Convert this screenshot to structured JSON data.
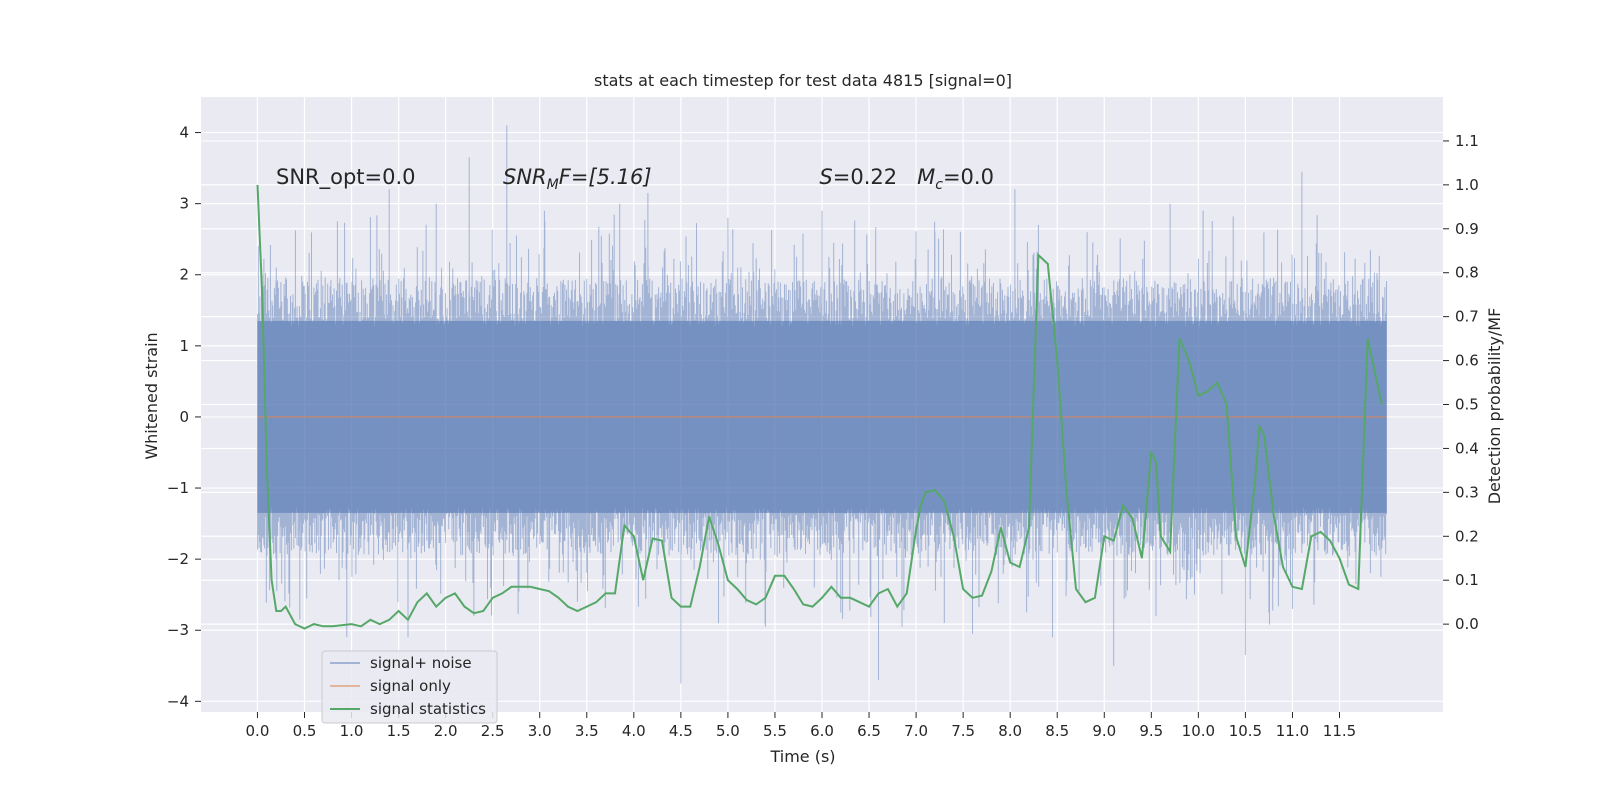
{
  "chart_data": {
    "type": "line",
    "title": "stats at each timestep for test data 4815 [signal=0]",
    "xlabel": "Time (s)",
    "ylabel": "Whitened strain",
    "y2label": "Detection probability/MF",
    "xlim": [
      -0.6,
      12.6
    ],
    "ylim": [
      -4.15,
      4.5
    ],
    "y2lim": [
      -0.2,
      1.2
    ],
    "x_ticks": [
      0.0,
      0.5,
      1.0,
      1.5,
      2.0,
      2.5,
      3.0,
      3.5,
      4.0,
      4.5,
      5.0,
      5.5,
      6.0,
      6.5,
      7.0,
      7.5,
      8.0,
      8.5,
      9.0,
      9.5,
      10.0,
      10.5,
      11.0,
      11.5
    ],
    "x_tick_labels": [
      "0.0",
      "0.5",
      "1.0",
      "1.5",
      "2.0",
      "2.5",
      "3.0",
      "3.5",
      "4.0",
      "4.5",
      "5.0",
      "5.5",
      "6.0",
      "6.5",
      "7.0",
      "7.5",
      "8.0",
      "8.5",
      "9.0",
      "9.5",
      "10.0",
      "10.5",
      "11.0",
      "11.5"
    ],
    "y_ticks": [
      -4,
      -3,
      -2,
      -1,
      0,
      1,
      2,
      3,
      4
    ],
    "y_tick_labels": [
      "−4",
      "−3",
      "−2",
      "−1",
      "0",
      "1",
      "2",
      "3",
      "4"
    ],
    "y2_ticks": [
      0.0,
      0.1,
      0.2,
      0.3,
      0.4,
      0.5,
      0.6,
      0.7,
      0.8,
      0.9,
      1.0,
      1.1
    ],
    "y2_tick_labels": [
      "0.0",
      "0.1",
      "0.2",
      "0.3",
      "0.4",
      "0.5",
      "0.6",
      "0.7",
      "0.8",
      "0.9",
      "1.0",
      "1.1"
    ],
    "grid": true,
    "legend_position": "lower-left",
    "series": [
      {
        "name": "signal+ noise",
        "color": "#4c72b0",
        "axis": "left",
        "x_range": [
          0.0,
          12.0
        ],
        "typical_envelope": [
          -1.5,
          1.5
        ],
        "spikes": [
          [
            0.05,
            2.0
          ],
          [
            0.2,
            2.1
          ],
          [
            0.85,
            2.75
          ],
          [
            1.4,
            3.2
          ],
          [
            1.9,
            3.0
          ],
          [
            2.25,
            3.65
          ],
          [
            2.65,
            4.1
          ],
          [
            3.05,
            2.9
          ],
          [
            3.85,
            3.0
          ],
          [
            4.15,
            3.15
          ],
          [
            5.0,
            2.8
          ],
          [
            6.0,
            2.9
          ],
          [
            7.2,
            2.6
          ],
          [
            8.05,
            3.2
          ],
          [
            8.3,
            2.7
          ],
          [
            9.7,
            3.0
          ],
          [
            10.05,
            2.9
          ],
          [
            11.1,
            3.45
          ],
          [
            11.9,
            2.0
          ],
          [
            0.1,
            -1.95
          ],
          [
            0.45,
            -2.85
          ],
          [
            0.95,
            -3.1
          ],
          [
            1.6,
            -3.1
          ],
          [
            2.3,
            -2.8
          ],
          [
            3.4,
            -2.6
          ],
          [
            4.5,
            -3.75
          ],
          [
            4.9,
            -2.9
          ],
          [
            5.4,
            -2.95
          ],
          [
            6.2,
            -2.75
          ],
          [
            6.6,
            -3.7
          ],
          [
            6.85,
            -2.95
          ],
          [
            7.3,
            -2.9
          ],
          [
            7.6,
            -3.05
          ],
          [
            8.45,
            -3.1
          ],
          [
            9.1,
            -3.5
          ],
          [
            9.55,
            -2.8
          ],
          [
            10.5,
            -3.35
          ],
          [
            10.75,
            -2.75
          ],
          [
            11.0,
            -2.7
          ],
          [
            11.95,
            -1.85
          ]
        ]
      },
      {
        "name": "signal only",
        "color": "#dd8452",
        "axis": "left",
        "x": [
          0.0,
          12.0
        ],
        "y": [
          0.0,
          0.0
        ]
      },
      {
        "name": "signal statistics",
        "color": "#55a868",
        "axis": "right",
        "x": [
          0.0,
          0.05,
          0.1,
          0.15,
          0.2,
          0.25,
          0.3,
          0.4,
          0.5,
          0.6,
          0.7,
          0.8,
          1.0,
          1.1,
          1.2,
          1.3,
          1.4,
          1.5,
          1.6,
          1.7,
          1.8,
          1.9,
          2.0,
          2.1,
          2.2,
          2.3,
          2.4,
          2.5,
          2.6,
          2.7,
          2.8,
          2.9,
          3.0,
          3.1,
          3.2,
          3.3,
          3.4,
          3.5,
          3.6,
          3.7,
          3.8,
          3.9,
          4.0,
          4.1,
          4.2,
          4.3,
          4.4,
          4.5,
          4.6,
          4.7,
          4.8,
          4.9,
          5.0,
          5.1,
          5.2,
          5.3,
          5.4,
          5.5,
          5.6,
          5.7,
          5.8,
          5.9,
          6.0,
          6.1,
          6.2,
          6.3,
          6.4,
          6.5,
          6.6,
          6.7,
          6.8,
          6.9,
          7.0,
          7.05,
          7.1,
          7.2,
          7.3,
          7.4,
          7.5,
          7.6,
          7.7,
          7.8,
          7.9,
          8.0,
          8.1,
          8.2,
          8.3,
          8.4,
          8.5,
          8.6,
          8.7,
          8.8,
          8.9,
          9.0,
          9.1,
          9.2,
          9.3,
          9.4,
          9.5,
          9.55,
          9.6,
          9.7,
          9.8,
          9.9,
          10.0,
          10.1,
          10.2,
          10.3,
          10.4,
          10.5,
          10.6,
          10.65,
          10.7,
          10.8,
          10.9,
          11.0,
          11.1,
          11.2,
          11.3,
          11.4,
          11.5,
          11.6,
          11.7,
          11.8,
          11.85,
          11.95
        ],
        "y": [
          1.0,
          0.75,
          0.35,
          0.1,
          0.03,
          0.03,
          0.04,
          0.0,
          -0.01,
          0.0,
          -0.005,
          -0.005,
          0.0,
          -0.005,
          0.01,
          0.0,
          0.01,
          0.03,
          0.01,
          0.05,
          0.07,
          0.04,
          0.06,
          0.07,
          0.04,
          0.025,
          0.03,
          0.06,
          0.07,
          0.085,
          0.085,
          0.085,
          0.08,
          0.075,
          0.06,
          0.04,
          0.03,
          0.04,
          0.05,
          0.07,
          0.07,
          0.225,
          0.2,
          0.1,
          0.195,
          0.19,
          0.06,
          0.04,
          0.04,
          0.13,
          0.245,
          0.18,
          0.1,
          0.08,
          0.055,
          0.045,
          0.06,
          0.11,
          0.11,
          0.08,
          0.045,
          0.04,
          0.06,
          0.085,
          0.06,
          0.06,
          0.05,
          0.04,
          0.07,
          0.08,
          0.04,
          0.07,
          0.215,
          0.27,
          0.3,
          0.305,
          0.28,
          0.2,
          0.08,
          0.06,
          0.065,
          0.12,
          0.22,
          0.14,
          0.13,
          0.22,
          0.84,
          0.82,
          0.6,
          0.3,
          0.08,
          0.05,
          0.06,
          0.2,
          0.19,
          0.27,
          0.24,
          0.15,
          0.39,
          0.37,
          0.2,
          0.165,
          0.65,
          0.6,
          0.52,
          0.53,
          0.55,
          0.5,
          0.2,
          0.13,
          0.32,
          0.45,
          0.43,
          0.25,
          0.13,
          0.085,
          0.08,
          0.2,
          0.21,
          0.19,
          0.15,
          0.09,
          0.08,
          0.65,
          0.6,
          0.5
        ]
      }
    ],
    "annotations": [
      {
        "text": "SNR_opt=0.0"
      },
      {
        "text_parts": [
          "SNR",
          "M",
          "F=[5.16]"
        ]
      },
      {
        "text_parts": [
          "S",
          "=0.22   ",
          "M",
          "c",
          "=0.0"
        ]
      }
    ]
  }
}
